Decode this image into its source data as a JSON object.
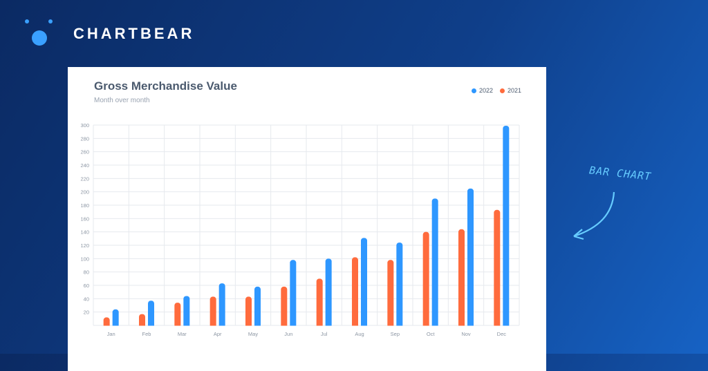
{
  "brand": {
    "name": "CHARTBEAR"
  },
  "annotation": {
    "text": "BAR CHART"
  },
  "colors": {
    "c2022": "#2e97ff",
    "c2021": "#ff6b3d",
    "accent": "#66ccff"
  },
  "legend": [
    {
      "label": "2022",
      "color": "#2e97ff"
    },
    {
      "label": "2021",
      "color": "#ff6b3d"
    }
  ],
  "chart_data": {
    "type": "bar",
    "title": "Gross Merchandise Value",
    "subtitle": "Month over month",
    "categories": [
      "Jan",
      "Feb",
      "Mar",
      "Apr",
      "May",
      "Jun",
      "Jul",
      "Aug",
      "Sep",
      "Oct",
      "Nov",
      "Dec"
    ],
    "series": [
      {
        "name": "2021",
        "color": "#ff6b3d",
        "values": [
          12,
          17,
          34,
          43,
          43,
          58,
          70,
          102,
          98,
          140,
          144,
          173
        ]
      },
      {
        "name": "2022",
        "color": "#2e97ff",
        "values": [
          24,
          37,
          44,
          63,
          58,
          98,
          100,
          131,
          124,
          190,
          205,
          299
        ]
      }
    ],
    "y_ticks": [
      20,
      40,
      60,
      80,
      100,
      120,
      140,
      160,
      180,
      200,
      220,
      240,
      260,
      280,
      300
    ],
    "ylim": [
      0,
      300
    ],
    "grid": true,
    "legend_position": "top-right"
  }
}
